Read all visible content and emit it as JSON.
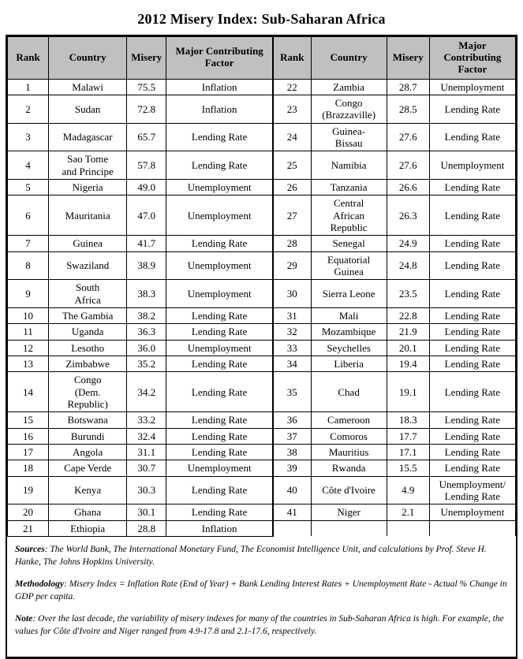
{
  "title": "2012 Misery Index: Sub-Saharan Africa",
  "table": {
    "headers": [
      "Rank",
      "Country",
      "Misery",
      "Major Contributing Factor",
      "Rank",
      "Country",
      "Misery",
      "Major Contributing Factor"
    ],
    "rows": [
      [
        "1",
        "Malawi",
        "75.5",
        "Inflation",
        "22",
        "Zambia",
        "28.7",
        "Unemployment"
      ],
      [
        "2",
        "Sudan",
        "72.8",
        "Inflation",
        "23",
        "Congo\n(Brazzaville)",
        "28.5",
        "Lending Rate"
      ],
      [
        "3",
        "Madagascar",
        "65.7",
        "Lending Rate",
        "24",
        "Guinea-\nBissau",
        "27.6",
        "Lending Rate"
      ],
      [
        "4",
        "Sao Tome\nand Principe",
        "57.8",
        "Lending Rate",
        "25",
        "Namibia",
        "27.6",
        "Unemployment"
      ],
      [
        "5",
        "Nigeria",
        "49.0",
        "Unemployment",
        "26",
        "Tanzania",
        "26.6",
        "Lending Rate"
      ],
      [
        "6",
        "Mauritania",
        "47.0",
        "Unemployment",
        "27",
        "Central\nAfrican\nRepublic",
        "26.3",
        "Lending Rate"
      ],
      [
        "7",
        "Guinea",
        "41.7",
        "Lending Rate",
        "28",
        "Senegal",
        "24.9",
        "Lending Rate"
      ],
      [
        "8",
        "Swaziland",
        "38.9",
        "Unemployment",
        "29",
        "Equatorial\nGuinea",
        "24.8",
        "Lending Rate"
      ],
      [
        "9",
        "South\nAfrica",
        "38.3",
        "Unemployment",
        "30",
        "Sierra Leone",
        "23.5",
        "Lending Rate"
      ],
      [
        "10",
        "The Gambia",
        "38.2",
        "Lending Rate",
        "31",
        "Mali",
        "22.8",
        "Lending Rate"
      ],
      [
        "11",
        "Uganda",
        "36.3",
        "Lending Rate",
        "32",
        "Mozambique",
        "21.9",
        "Lending Rate"
      ],
      [
        "12",
        "Lesotho",
        "36.0",
        "Unemployment",
        "33",
        "Seychelles",
        "20.1",
        "Lending Rate"
      ],
      [
        "13",
        "Zimbabwe",
        "35.2",
        "Lending Rate",
        "34",
        "Liberia",
        "19.4",
        "Lending Rate"
      ],
      [
        "14",
        "Congo\n(Dem.\nRepublic)",
        "34.2",
        "Lending Rate",
        "35",
        "Chad",
        "19.1",
        "Lending Rate"
      ],
      [
        "15",
        "Botswana",
        "33.2",
        "Lending Rate",
        "36",
        "Cameroon",
        "18.3",
        "Lending Rate"
      ],
      [
        "16",
        "Burundi",
        "32.4",
        "Lending Rate",
        "37",
        "Comoros",
        "17.7",
        "Lending Rate"
      ],
      [
        "17",
        "Angola",
        "31.1",
        "Lending Rate",
        "38",
        "Mauritius",
        "17.1",
        "Lending Rate"
      ],
      [
        "18",
        "Cape Verde",
        "30.7",
        "Unemployment",
        "39",
        "Rwanda",
        "15.5",
        "Lending Rate"
      ],
      [
        "19",
        "Kenya",
        "30.3",
        "Lending Rate",
        "40",
        "Côte d'Ivoire",
        "4.9",
        "Unemployment/\nLending Rate"
      ],
      [
        "20",
        "Ghana",
        "30.1",
        "Lending Rate",
        "41",
        "Niger",
        "2.1",
        "Unemployment"
      ],
      [
        "21",
        "Ethiopia",
        "28.8",
        "Inflation",
        "",
        "",
        "",
        ""
      ]
    ]
  },
  "notes": {
    "sources_label": "Sources",
    "sources_text": ": The World Bank, The International Monetary Fund, The Economist Intelligence Unit, and calculations by Prof. Steve H. Hanke, The Johns Hopkins University.",
    "methodology_label": "Methodology",
    "methodology_text": ":  Misery Index = Inflation Rate (End of Year) + Bank Lending Interest Rates + Unemployment Rate - Actual % Change in GDP per capita.",
    "note_label": "Note",
    "note_text": ": Over the last decade, the variability of misery indexes for many of the countries in Sub-Saharan Africa is high. For example, the values for Côte d'Ivoire and Niger ranged from 4.9-17.8 and 2.1-17.6, respectively."
  },
  "colors": {
    "header_bg": "#c0c0c0",
    "border": "#000000",
    "background": "#ffffff"
  }
}
